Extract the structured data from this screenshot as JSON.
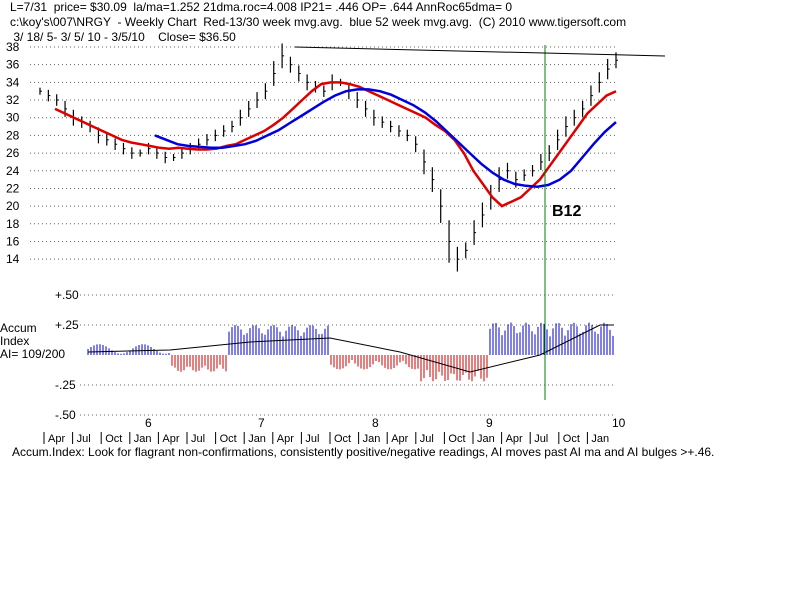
{
  "header": {
    "line1": "L=7/31  price= $30.09  la/ma=1.252 21dma.roc=4.008 IP21= .446 OP= .644 AnnRoc65dma= 0",
    "line2": "c:\\koy's\\007\\NRGY  - Weekly Chart  Red-13/30 week mvg.avg.  blue 52 week mvg.avg.  (C) 2010 www.tigersoft.com",
    "line3": " 3/ 18/ 5- 3/ 5/ 10 - 3/5/10    Close= $36.50"
  },
  "signal_label": "B12",
  "footer": "Accum.Index: Look for flagrant non-confirmations, consistently positive/negative readings, AI moves past AI ma and AI bulges >+.46.",
  "ai_panel": {
    "label_line1": "Accum",
    "label_line2": "Index",
    "label_line3": "AI= 109/200",
    "yticks": [
      "+.50",
      "+.25",
      "-.25",
      "-.50"
    ]
  },
  "colors": {
    "ma13": "#ff0000",
    "ma30": "#dd0000",
    "ma52": "#0000dd",
    "ai_pos": "#0000cc",
    "ai_neg": "#cc0000",
    "signal": "#008000"
  },
  "chart_data": {
    "type": "line",
    "ylim": [
      13,
      38
    ],
    "yticks": [
      14,
      16,
      18,
      20,
      22,
      24,
      26,
      28,
      30,
      32,
      34,
      36,
      38
    ],
    "year_labels": [
      "6",
      "7",
      "8",
      "9",
      "10"
    ],
    "month_labels": [
      "Apr",
      "Jul",
      "Oct",
      "Jan",
      "Apr",
      "Jul",
      "Oct",
      "Jan",
      "Apr",
      "Jul",
      "Oct",
      "Jan",
      "Apr",
      "Jul",
      "Oct",
      "Jan",
      "Apr",
      "Jul",
      "Oct",
      "Jan"
    ],
    "series": [
      {
        "values": [
          33,
          32.5,
          32,
          31,
          30,
          29.5,
          29,
          28,
          27.5,
          27,
          26.5,
          26,
          26,
          26.5,
          26,
          25.5,
          25.5,
          26,
          26.5,
          27,
          27.5,
          28,
          28.5,
          29,
          30,
          31,
          32,
          33,
          35,
          37,
          36,
          35,
          34,
          33.5,
          33,
          34,
          34,
          33,
          32,
          31,
          30,
          29.5,
          29,
          28.5,
          28,
          27,
          25,
          23,
          20,
          16,
          14,
          15,
          17,
          19,
          21,
          23,
          24,
          23,
          23.5,
          24,
          25,
          26,
          27.5,
          29,
          30,
          31,
          32.5,
          34,
          35.5,
          36.5
        ]
      },
      {
        "values": [
          31,
          30.5,
          30,
          29.5,
          29,
          28.5,
          28,
          27.5,
          27.2,
          27,
          26.8,
          26.6,
          26.5,
          26.6,
          26.5,
          26.4,
          26.4,
          26.5,
          26.8,
          27,
          27.5,
          28,
          28.5,
          29.2,
          30,
          31,
          32,
          33,
          33.8,
          34,
          34,
          33.8,
          33.5,
          33,
          32.5,
          32,
          31.5,
          31,
          30.5,
          30,
          29.2,
          28.5,
          27.5,
          26,
          24,
          22.5,
          21,
          20,
          20.5,
          21,
          22,
          23,
          24.5,
          26,
          27.5,
          29,
          30.5,
          31.5,
          32.5,
          33
        ]
      },
      {
        "values": [
          28,
          27.5,
          27,
          26.8,
          26.7,
          26.6,
          26.6,
          26.8,
          27,
          27.4,
          28,
          28.6,
          29.4,
          30.2,
          31,
          31.8,
          32.5,
          33,
          33.2,
          33.2,
          33,
          32.6,
          32,
          31.4,
          30.6,
          29.6,
          28.4,
          27.2,
          26,
          24.8,
          23.8,
          23,
          22.5,
          22.3,
          22.2,
          22.4,
          23,
          24,
          25.5,
          27,
          28.4,
          29.5
        ]
      }
    ],
    "signal_date_label": "B12"
  }
}
